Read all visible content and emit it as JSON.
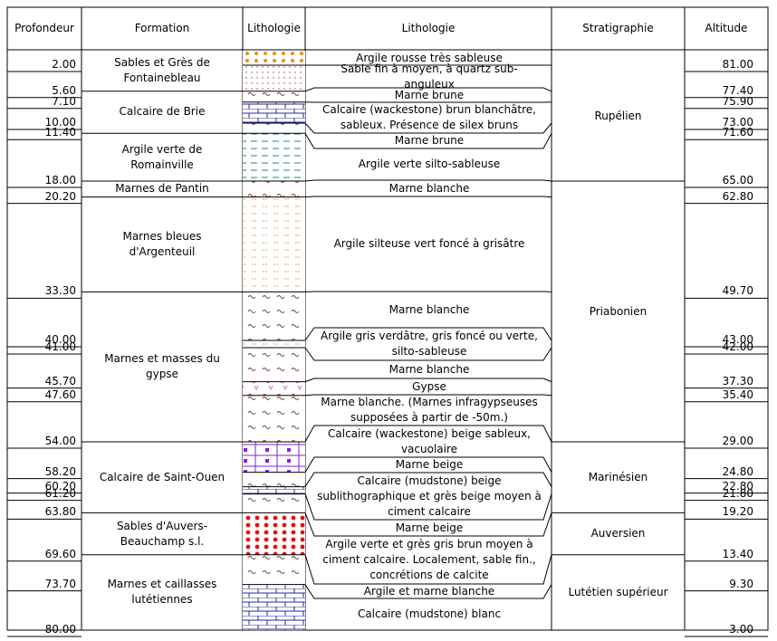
{
  "header": {
    "columns": [
      "Profondeur",
      "Formation",
      "Lithologie",
      "Lithologie",
      "Stratigraphie",
      "Altitude"
    ]
  },
  "depths": [
    "2.00",
    "5.60",
    "7.10",
    "10.00",
    "11.40",
    "18.00",
    "20.20",
    "33.30",
    "40.00",
    "41.00",
    "45.70",
    "47.60",
    "54.00",
    "58.20",
    "60.20",
    "61.20",
    "63.80",
    "69.60",
    "73.70",
    "80.00"
  ],
  "altitudes": [
    "81.00",
    "77.40",
    "75.90",
    "73.00",
    "71.60",
    "65.00",
    "62.80",
    "49.70",
    "43.00",
    "42.00",
    "37.30",
    "35.40",
    "29.00",
    "24.80",
    "22.80",
    "21.80",
    "19.20",
    "13.40",
    "9.30",
    "3.00"
  ],
  "formations": [
    "Sables et Grès de Fontainebleau",
    "Calcaire de Brie",
    "Argile verte de Romainville",
    "Marnes de Pantin",
    "Marnes bleues d'Argenteuil",
    "Marnes et masses du gypse",
    "Calcaire de Saint-Ouen",
    "Sables d'Auvers-Beauchamp s.l.",
    "Marnes et caillasses lutétiennes"
  ],
  "descriptions": [
    "Argile rousse très sableuse",
    "Sable fin à moyen, à quartz sub-anguleux",
    "Marne brune",
    "Calcaire (wackestone) brun blanchâtre, sableux. Présence de silex bruns",
    "Marne brune",
    "Argile verte silto-sableuse",
    "Marne blanche",
    "Argile silteuse vert foncé à grisâtre",
    "Marne blanche",
    "Argile gris verdâtre, gris foncé ou verte, silto-sableuse",
    "Marne blanche",
    "Gypse",
    "Marne blanche. (Marnes infragypseuses supposées à partir de -50m.)",
    "Calcaire (wackestone) beige sableux, vacuolaire",
    "Marne beige",
    "Calcaire (mudstone) beige sublithographique et grès beige moyen à ciment calcaire",
    "Marne beige",
    "Argile verte et grès gris brun moyen à ciment calcaire. Localement, sable fin., concrétions de calcite",
    "Argile et marne blanche",
    "Calcaire (mudstone) blanc"
  ],
  "stratigraphy": [
    "Rupélien",
    "Priabonien",
    "Marinésien",
    "Auversien",
    "Lutétien supérieur"
  ]
}
